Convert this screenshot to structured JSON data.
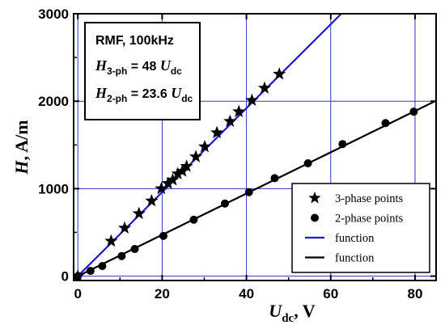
{
  "chart_data": {
    "type": "scatter",
    "title": "",
    "xlabel": {
      "main": "U",
      "sub": "dc",
      "unit": ", V"
    },
    "ylabel": {
      "main": "H",
      "unit": ",  A/m"
    },
    "xlim": [
      -1,
      85
    ],
    "ylim": [
      -50,
      3000
    ],
    "xticks": [
      0,
      20,
      40,
      60,
      80
    ],
    "yticks": [
      0,
      1000,
      2000,
      3000
    ],
    "grid": true,
    "grid_color": "#3333cc",
    "legend_position": "bottom-right",
    "annotation": {
      "line1": "RMF,  100kHz",
      "line2": {
        "var": "H",
        "sub": "3-ph",
        "rest": " = 48 ",
        "var2": "U",
        "sub2": "dc"
      },
      "line3": {
        "var": "H",
        "sub": "2-ph",
        "rest": " = 23.6 ",
        "var2": "U",
        "sub2": "dc"
      }
    },
    "series": [
      {
        "name": "3-phase points",
        "kind": "points",
        "marker": "star",
        "color": "#000000",
        "points": [
          [
            0,
            0
          ],
          [
            7.9,
            400
          ],
          [
            11.1,
            550
          ],
          [
            14.5,
            715
          ],
          [
            17.5,
            860
          ],
          [
            19.8,
            1000
          ],
          [
            21.4,
            1060
          ],
          [
            22.5,
            1100
          ],
          [
            23.7,
            1170
          ],
          [
            24.8,
            1200
          ],
          [
            25.8,
            1255
          ],
          [
            28.0,
            1365
          ],
          [
            30.1,
            1480
          ],
          [
            33.0,
            1640
          ],
          [
            36.1,
            1770
          ],
          [
            38.2,
            1880
          ],
          [
            41.3,
            2010
          ],
          [
            44.3,
            2150
          ],
          [
            47.8,
            2310
          ]
        ]
      },
      {
        "name": "2-phase points",
        "kind": "points",
        "marker": "circle",
        "color": "#000000",
        "points": [
          [
            0,
            0
          ],
          [
            3.0,
            60
          ],
          [
            5.8,
            115
          ],
          [
            10.4,
            230
          ],
          [
            13.5,
            310
          ],
          [
            20.3,
            460
          ],
          [
            27.5,
            645
          ],
          [
            34.9,
            830
          ],
          [
            40.6,
            960
          ],
          [
            46.7,
            1120
          ],
          [
            54.6,
            1290
          ],
          [
            62.8,
            1510
          ],
          [
            73.0,
            1750
          ],
          [
            79.7,
            1880
          ]
        ]
      },
      {
        "name": "function",
        "kind": "line",
        "color": "#1a1ad4",
        "slope": 48,
        "x": [
          0,
          62.5
        ]
      },
      {
        "name": "function",
        "kind": "line",
        "color": "#000000",
        "slope": 23.6,
        "x": [
          0,
          84.7
        ]
      }
    ]
  }
}
